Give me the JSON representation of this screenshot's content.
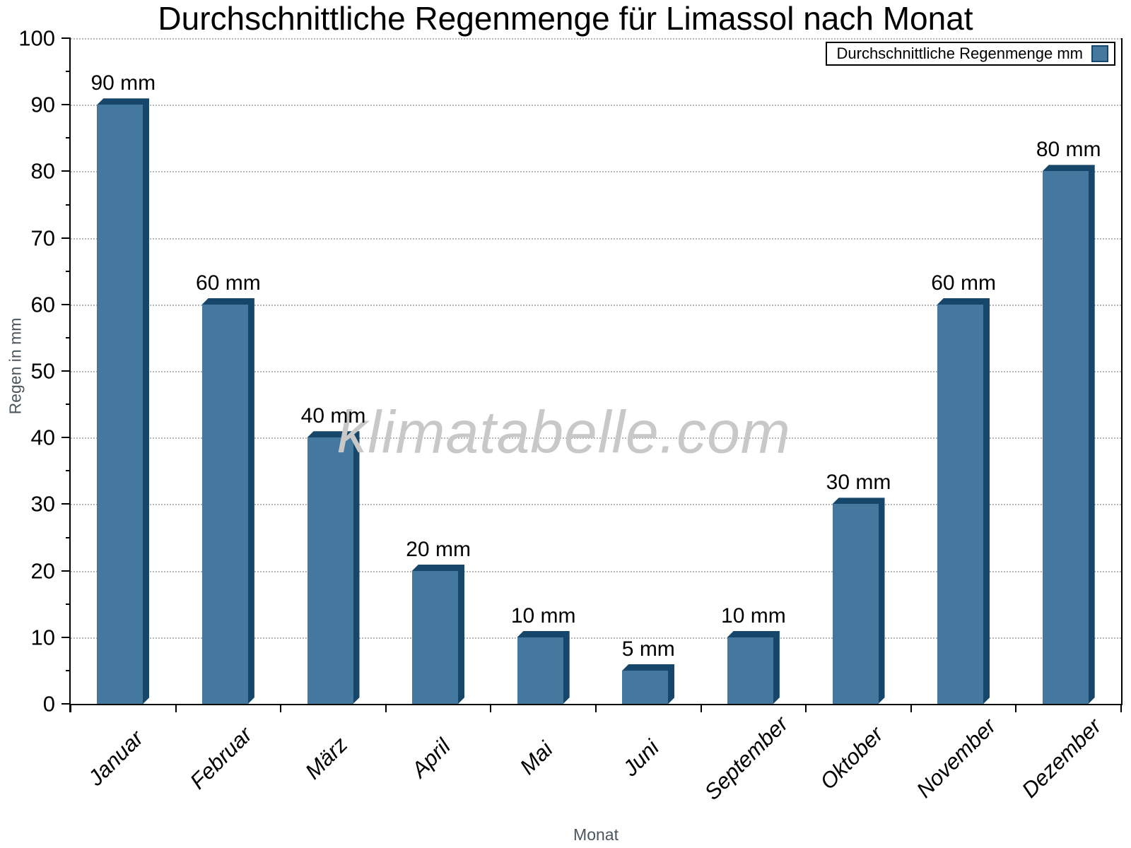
{
  "watermark": "klimatabelle.com",
  "chart_data": {
    "type": "bar",
    "title": "Durchschnittliche Regenmenge für Limassol nach Monat",
    "xlabel": "Monat",
    "ylabel": "Regen in mm",
    "categories": [
      "Januar",
      "Februar",
      "März",
      "April",
      "Mai",
      "Juni",
      "September",
      "Oktober",
      "November",
      "Dezember"
    ],
    "values": [
      90,
      60,
      40,
      20,
      10,
      5,
      10,
      30,
      60,
      80
    ],
    "bar_labels": [
      "90 mm",
      "60 mm",
      "40 mm",
      "20 mm",
      "10 mm",
      "5 mm",
      "10 mm",
      "30 mm",
      "60 mm",
      "80 mm"
    ],
    "unit": "mm",
    "ylim": [
      0,
      100
    ],
    "ytick_step": 10,
    "ytick_minor_step": 5,
    "yticks": [
      0,
      10,
      20,
      30,
      40,
      50,
      60,
      70,
      80,
      90,
      100
    ],
    "grid": "horizontal-dotted",
    "legend": {
      "label": "Durchschnittliche Regenmenge mm",
      "position": "top-right"
    },
    "colors": {
      "bar_face": "#44789e",
      "bar_edge": "#164669",
      "grid": "#b5b5b5",
      "axis": "#000000",
      "axis_title_text": "#4b565e",
      "watermark_text": "#c8c8c8"
    }
  }
}
